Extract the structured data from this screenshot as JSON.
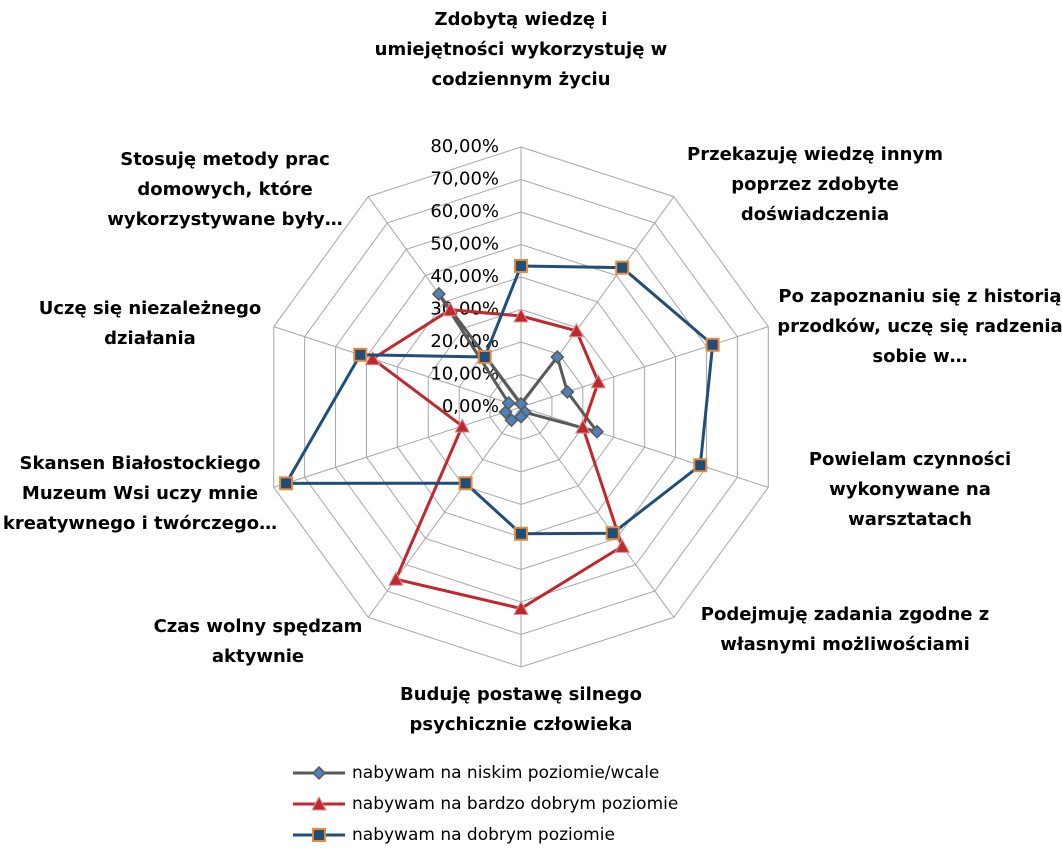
{
  "chart_data": {
    "type": "radar",
    "categories": [
      "Zdobytą wiedzę i umiejętności wykorzystuję w codziennym życiu",
      "Przekazuję wiedzę innym poprzez zdobyte doświadczenia",
      "Po zapoznaniu się z historią przodków, uczę się radzenia sobie w…",
      "Powielam czynności wykonywane na warsztatach",
      "Podejmuję zadania zgodne z własnymi możliwościami",
      "Buduję postawę silnego psychicznie człowieka",
      "Czas wolny spędzam aktywnie",
      "Skansen Białostockiego Muzeum Wsi uczy mnie kreatywnego i twórczego…",
      "Uczę się niezależnego działania",
      "Stosuję metody prac domowych, które wykorzystywane były…"
    ],
    "series": [
      {
        "name": "nabywam na niskim poziomie/wcale",
        "color": "#595959",
        "marker": "diamond",
        "values": [
          1,
          19,
          15,
          24.6,
          2,
          3,
          5,
          5,
          4,
          43
        ]
      },
      {
        "name": "nabywam na bardzo dobrym poziomie",
        "color": "#c0282d",
        "marker": "triangle",
        "values": [
          28,
          29,
          25,
          20,
          53,
          62,
          65.5,
          19,
          48,
          37
        ]
      },
      {
        "name": "nabywam na dobrym poziomie",
        "color": "#1f4e79",
        "marker": "square",
        "values": [
          43.4,
          53,
          62,
          58,
          48,
          39,
          29,
          76,
          52,
          19
        ]
      }
    ],
    "ylim": [
      0,
      80
    ],
    "yticks": [
      {
        "value": 0,
        "label": "0,00%"
      },
      {
        "value": 10,
        "label": "10,00%"
      },
      {
        "value": 20,
        "label": "20,00%"
      },
      {
        "value": 30,
        "label": "30,00%"
      },
      {
        "value": 40,
        "label": "40,00%"
      },
      {
        "value": 50,
        "label": "50,00%"
      },
      {
        "value": 60,
        "label": "60,00%"
      },
      {
        "value": 70,
        "label": "70,00%"
      },
      {
        "value": 80,
        "label": "80,00%"
      }
    ],
    "grid": true
  }
}
